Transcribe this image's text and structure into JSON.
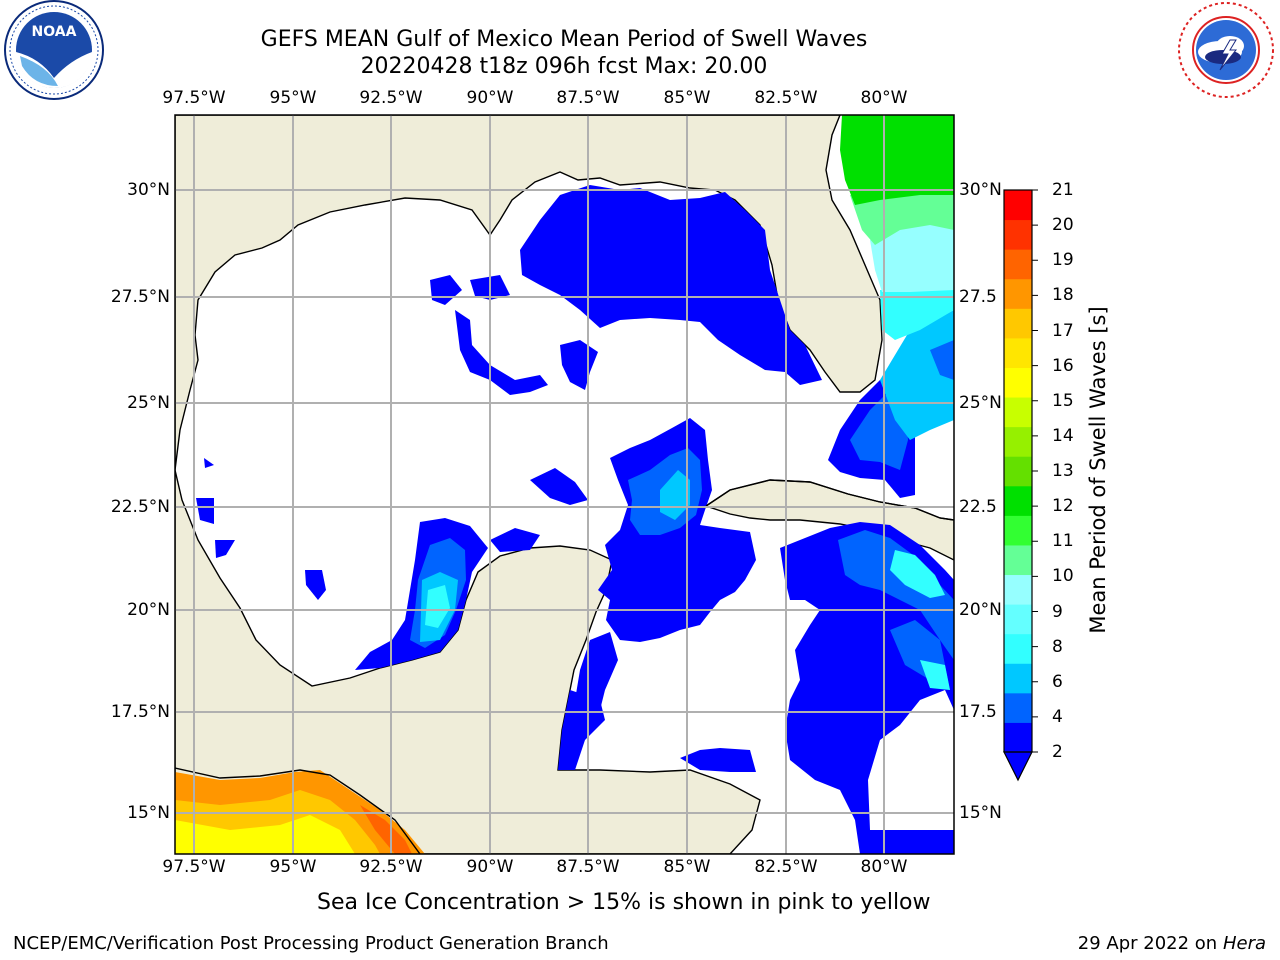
{
  "title": {
    "line1": "GEFS MEAN Gulf of Mexico Mean Period of Swell Waves",
    "line2": "20220428 t18z 096h fcst   Max: 20.00"
  },
  "logos": {
    "left": {
      "name": "noaa-logo",
      "text": "NOAA",
      "ring_text": "NATIONAL OCEANIC AND ATMOSPHERIC ADMINISTRATION · U.S. DEPARTMENT OF COMMERCE"
    },
    "right": {
      "name": "nws-logo",
      "ring_text": "NATIONAL WEATHER SERVICE"
    }
  },
  "map": {
    "region": "Gulf of Mexico",
    "lon_labels": [
      "97.5°W",
      "95°W",
      "92.5°W",
      "90°W",
      "87.5°W",
      "85°W",
      "82.5°W",
      "80°W"
    ],
    "lat_labels_left": [
      "30°N",
      "27.5°N",
      "25°N",
      "22.5°N",
      "20°N",
      "17.5°N",
      "15°N"
    ],
    "lat_labels_right": [
      "30°N",
      "27.5",
      "25°N",
      "22.5",
      "20°N",
      "17.5",
      "15°N"
    ],
    "land_color": "#efedd9",
    "grid_color": "#b0b0b0"
  },
  "colorbar": {
    "title": "Mean Period of Swell Waves [s]",
    "ticks": [
      "21",
      "20",
      "19",
      "18",
      "17",
      "16",
      "15",
      "14",
      "13",
      "12",
      "11",
      "10",
      "9",
      "8",
      "6",
      "4",
      "2"
    ],
    "colors": [
      "#0000ff",
      "#0064ff",
      "#00c8ff",
      "#32ffff",
      "#64ffff",
      "#96ffff",
      "#64ff96",
      "#32ff32",
      "#00e000",
      "#64e000",
      "#96f000",
      "#c8ff00",
      "#ffff00",
      "#ffe600",
      "#ffc800",
      "#ff9600",
      "#ff6400",
      "#ff3200",
      "#ff0000"
    ],
    "extend": "min"
  },
  "caption": "Sea Ice Concentration > 15% is shown in pink to yellow",
  "footer": {
    "left": "NCEP/EMC/Verification Post Processing Product Generation Branch",
    "right_prefix": "29 Apr 2022 on ",
    "right_host": "Hera"
  }
}
